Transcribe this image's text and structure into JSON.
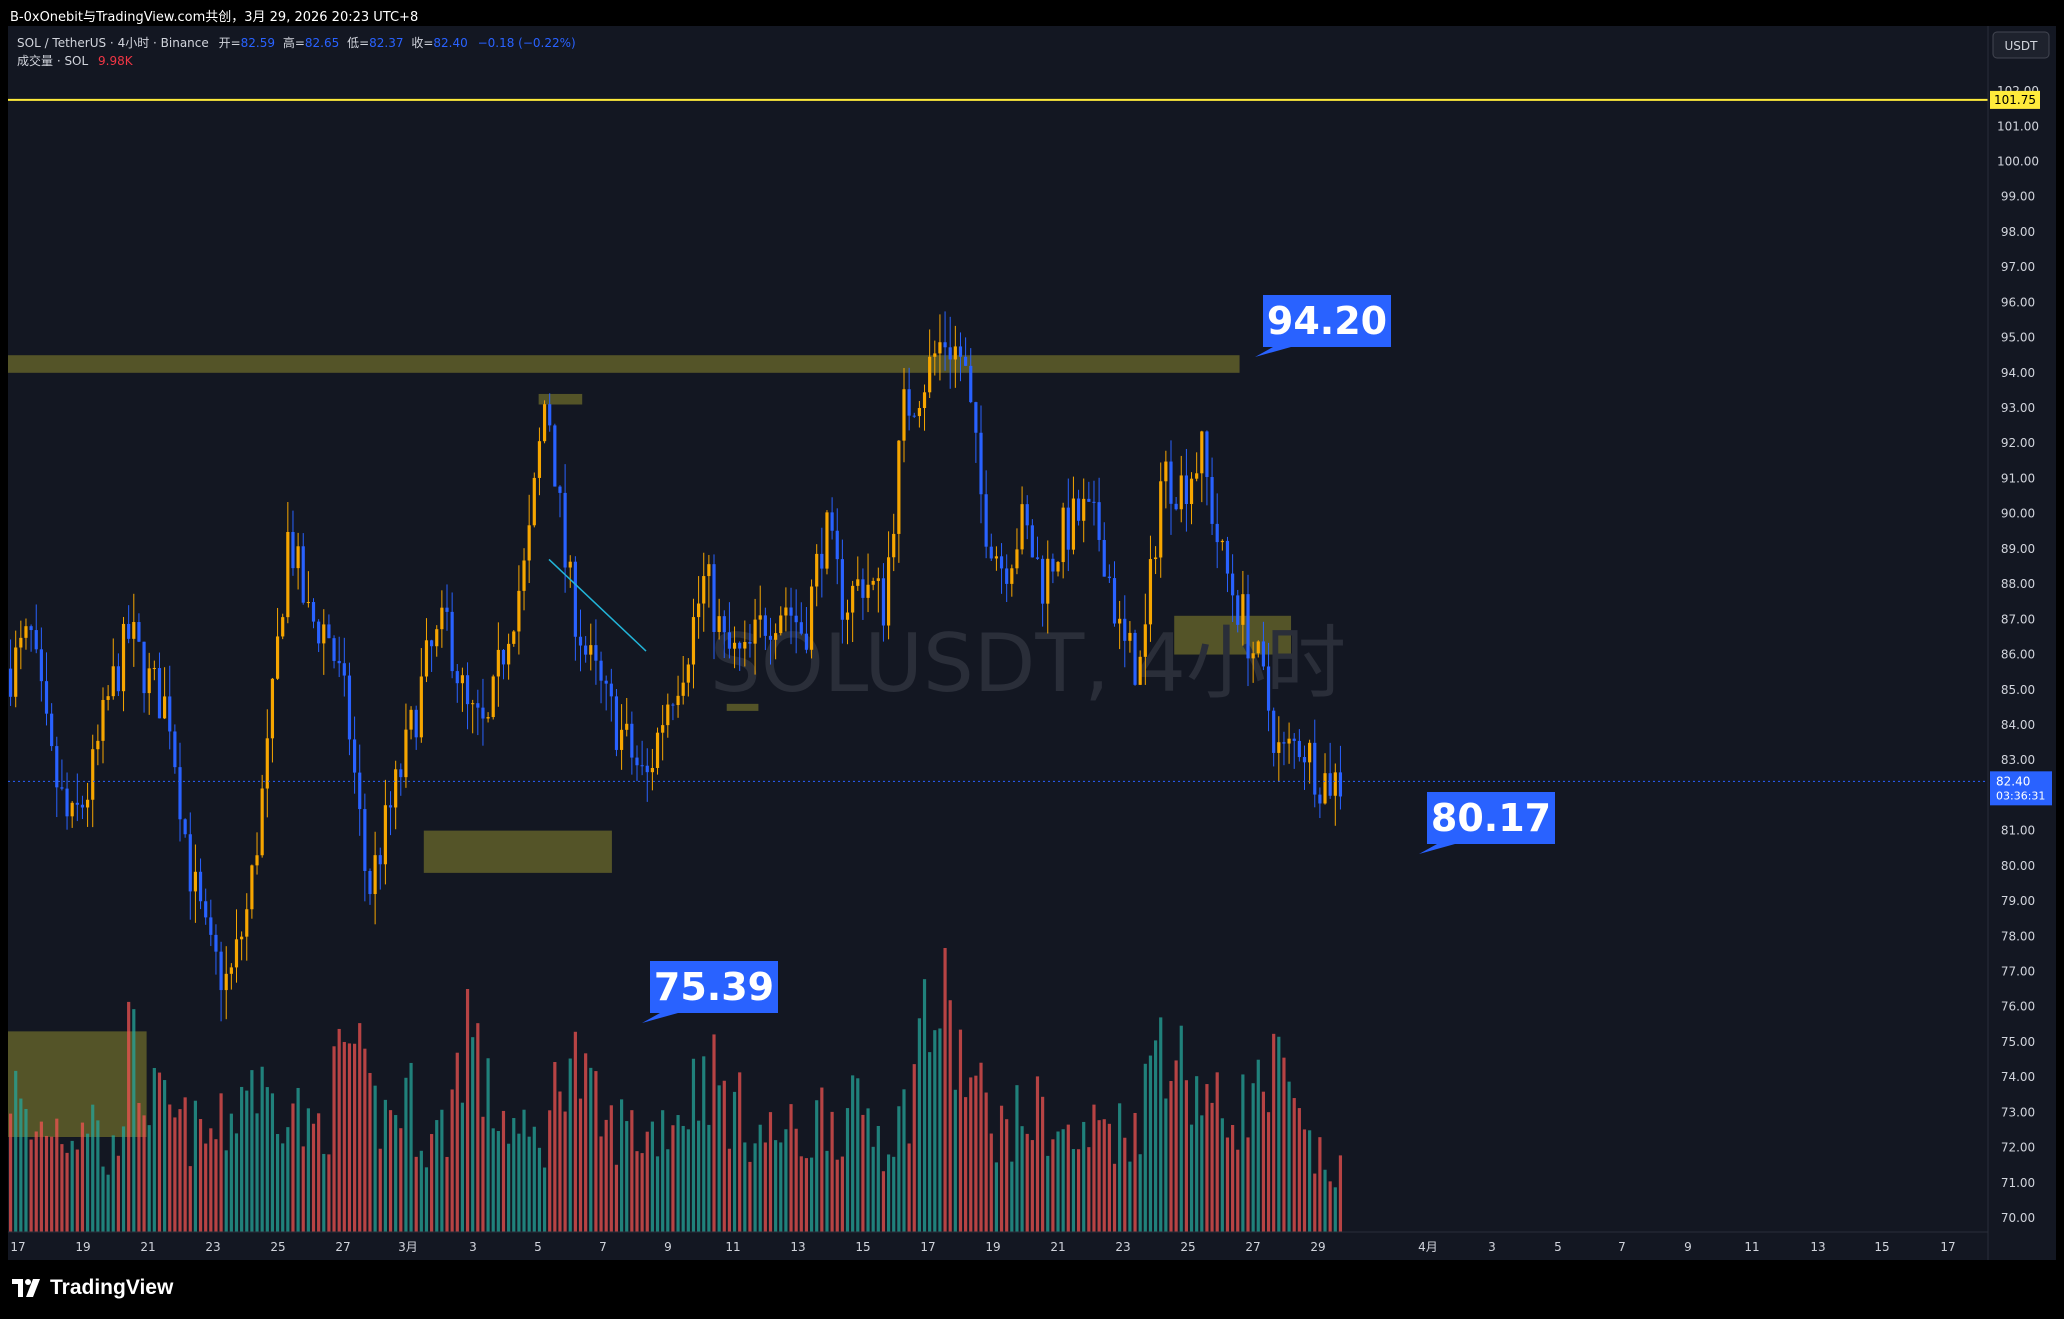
{
  "header": {
    "title": "B-0xOnebit与TradingView.com共创，3月 29, 2026 20:23 UTC+8"
  },
  "legend": {
    "symbol": "SOL / TetherUS · 4小时 · Binance",
    "open_label": "开=",
    "open": "82.59",
    "high_label": "高=",
    "high": "82.65",
    "low_label": "低=",
    "low": "82.37",
    "close_label": "收=",
    "close": "82.40",
    "change": "−0.18 (−0.22%)",
    "volume_label": "成交量 · SOL",
    "volume": "9.98K"
  },
  "watermark": "SOLUSDT, 4小时",
  "currency_button": "USDT",
  "price_tags": {
    "level": "101.75",
    "last": "82.40",
    "countdown": "03:36:31"
  },
  "callouts": [
    {
      "label": "94.20"
    },
    {
      "label": "80.17"
    },
    {
      "label": "75.39"
    }
  ],
  "brand": "TradingView",
  "colors": {
    "background": "#131722",
    "up": "#f7a600",
    "down": "#2962ff",
    "volume_up": "#26a69a",
    "volume_down": "#ef5350",
    "zone": "#6b6a2b",
    "level_line": "#ffeb3b",
    "callout": "#2962ff"
  },
  "chart_data": {
    "type": "candlestick",
    "symbol": "SOLUSDT",
    "interval": "4小时",
    "exchange": "Binance",
    "y_axis": {
      "ticks": [
        "70.00",
        "71.00",
        "72.00",
        "73.00",
        "74.00",
        "75.00",
        "76.00",
        "77.00",
        "78.00",
        "79.00",
        "80.00",
        "81.00",
        "82.00",
        "83.00",
        "84.00",
        "85.00",
        "86.00",
        "87.00",
        "88.00",
        "89.00",
        "90.00",
        "91.00",
        "92.00",
        "93.00",
        "94.00",
        "95.00",
        "96.00",
        "97.00",
        "98.00",
        "99.00",
        "100.00",
        "101.00",
        "102.00"
      ],
      "ylim": [
        70,
        102.4
      ]
    },
    "x_axis": {
      "ticks": [
        "17",
        "19",
        "21",
        "23",
        "25",
        "27",
        "3月",
        "3",
        "5",
        "7",
        "9",
        "11",
        "13",
        "15",
        "17",
        "19",
        "21",
        "23",
        "25",
        "27",
        "29",
        "4月",
        "3",
        "5",
        "7",
        "9",
        "11",
        "13",
        "15",
        "17"
      ]
    },
    "horizontal_level": 101.75,
    "last_price": 82.4,
    "price_path": [
      85.6,
      86.5,
      83.0,
      81.0,
      82.3,
      84.9,
      86.6,
      85.2,
      84.4,
      80.0,
      77.5,
      76.6,
      78.9,
      83.4,
      89.5,
      87.0,
      86.7,
      84.2,
      79.2,
      81.3,
      83.4,
      85.8,
      86.9,
      84.3,
      83.7,
      86.7,
      88.6,
      93.6,
      88.3,
      86.0,
      84.6,
      83.5,
      82.3,
      84.6,
      86.0,
      88.2,
      86.1,
      85.8,
      87.0,
      87.5,
      86.6,
      89.6,
      87.4,
      88.2,
      87.4,
      92.9,
      93.8,
      95.0,
      94.4,
      90.0,
      88.5,
      89.7,
      88.1,
      89.4,
      90.0,
      89.3,
      86.2,
      85.6,
      91.2,
      90.8,
      91.7,
      88.7,
      87.2,
      85.4,
      83.0,
      83.6,
      82.5,
      82.4
    ],
    "volume_path": [
      0.48,
      0.3,
      0.36,
      0.32,
      0.4,
      0.18,
      0.58,
      0.42,
      0.36,
      0.32,
      0.3,
      0.34,
      0.52,
      0.4,
      0.46,
      0.3,
      0.38,
      0.62,
      0.4,
      0.36,
      0.44,
      0.28,
      0.34,
      0.7,
      0.42,
      0.36,
      0.28,
      0.3,
      0.62,
      0.44,
      0.32,
      0.34,
      0.3,
      0.36,
      0.4,
      0.54,
      0.42,
      0.36,
      0.3,
      0.32,
      0.28,
      0.4,
      0.34,
      0.4,
      0.3,
      0.36,
      0.68,
      0.7,
      0.52,
      0.4,
      0.32,
      0.36,
      0.38,
      0.3,
      0.28,
      0.36,
      0.32,
      0.38,
      0.7,
      0.52,
      0.46,
      0.36,
      0.4,
      0.44,
      0.5,
      0.3,
      0.22,
      0.18
    ],
    "zones": [
      {
        "from_x": 0.0,
        "to_x": 0.622,
        "y_low": 94.0,
        "y_high": 94.5
      },
      {
        "from_x": 0.268,
        "to_x": 0.29,
        "y_low": 93.1,
        "y_high": 93.4
      },
      {
        "from_x": 0.363,
        "to_x": 0.379,
        "y_low": 84.4,
        "y_high": 84.6
      },
      {
        "from_x": 0.21,
        "to_x": 0.305,
        "y_low": 79.8,
        "y_high": 81.0
      },
      {
        "from_x": 0.589,
        "to_x": 0.648,
        "y_low": 86.0,
        "y_high": 87.1
      },
      {
        "from_x": 0.0,
        "to_x": 0.07,
        "y_low": 72.3,
        "y_high": 75.3
      }
    ]
  }
}
